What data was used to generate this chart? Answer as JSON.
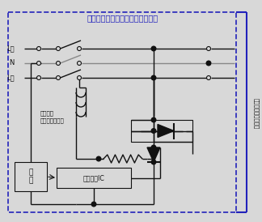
{
  "title": "単３中性線欠相保護付漏電遮断器",
  "title_color": "#2222BB",
  "bg_color": "#D8D8D8",
  "blue_color": "#2222BB",
  "line_color": "#111111",
  "gray_line_color": "#888888",
  "right_label_full": "過電圧検出リード線",
  "label_L1": "L１",
  "label_N": "N",
  "label_L2": "L２",
  "trip_label1": "引外し用",
  "trip_label2": "トリップコイル",
  "buntsu_label": "分\n圧",
  "custom_label": "カスタムIC",
  "fig_w": 3.24,
  "fig_h": 2.74,
  "dpi": 100
}
